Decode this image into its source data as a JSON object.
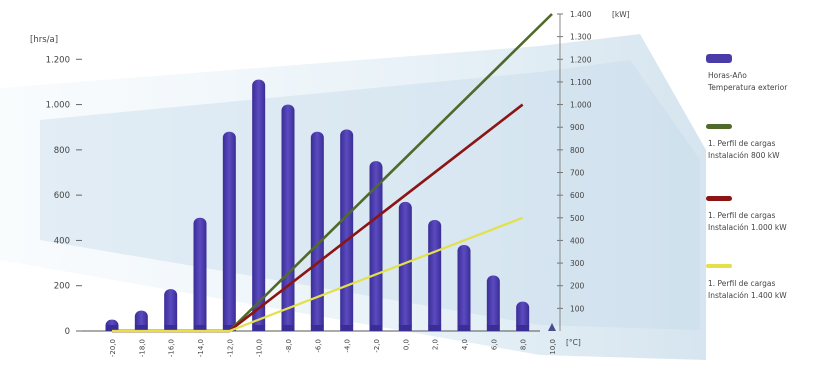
{
  "chart_data": {
    "type": "bar",
    "title": "",
    "ylabel_left": "[hrs/a]",
    "ylabel_right": "[kW]",
    "xlabel": "[°C]",
    "grid": false,
    "legend_position": "right",
    "categories": [
      "-20,0",
      "-18,0",
      "-16,0",
      "-14,0",
      "-12,0",
      "-10,0",
      "-8,0",
      "-6,0",
      "-4,0",
      "-2,0",
      "0,0",
      "2,0",
      "4,0",
      "6,0",
      "8,0",
      "10,0"
    ],
    "ylim_left": [
      0,
      1400
    ],
    "ylim_right": [
      0,
      1400
    ],
    "left_ticks": [
      {
        "value": 0,
        "label": "0"
      },
      {
        "value": 200,
        "label": "200"
      },
      {
        "value": 400,
        "label": "400"
      },
      {
        "value": 600,
        "label": "600"
      },
      {
        "value": 800,
        "label": "800"
      },
      {
        "value": 1000,
        "label": "1.000"
      },
      {
        "value": 1200,
        "label": "1.200"
      }
    ],
    "right_ticks": [
      {
        "value": 100,
        "label": "100"
      },
      {
        "value": 200,
        "label": "200"
      },
      {
        "value": 300,
        "label": "300"
      },
      {
        "value": 400,
        "label": "400"
      },
      {
        "value": 500,
        "label": "500"
      },
      {
        "value": 600,
        "label": "600"
      },
      {
        "value": 700,
        "label": "700"
      },
      {
        "value": 800,
        "label": "800"
      },
      {
        "value": 900,
        "label": "900"
      },
      {
        "value": 1000,
        "label": "1.000"
      },
      {
        "value": 1100,
        "label": "1.100"
      },
      {
        "value": 1200,
        "label": "1.200"
      },
      {
        "value": 1300,
        "label": "1.300"
      },
      {
        "value": 1400,
        "label": "1.400"
      }
    ],
    "bars": {
      "name": "Horas-Año Temperatura exterior",
      "color": "#4a3ca8",
      "values": [
        50,
        90,
        185,
        500,
        880,
        1110,
        1000,
        880,
        890,
        750,
        570,
        490,
        380,
        245,
        130,
        20
      ]
    },
    "lines": [
      {
        "name": "1. Perfil de cargas Instalación 800 kW",
        "color": "#4f6a2a",
        "points": [
          [
            -20,
            0
          ],
          [
            -12,
            0
          ],
          [
            10,
            1400
          ]
        ]
      },
      {
        "name": "1. Perfil de cargas Instalación 1.000 kW",
        "color": "#8b1414",
        "points": [
          [
            -20,
            0
          ],
          [
            -12,
            0
          ],
          [
            8,
            1000
          ]
        ]
      },
      {
        "name": "1. Perfil de cargas Instalación 1.400 kW",
        "color": "#e3e04a",
        "points": [
          [
            -20,
            0
          ],
          [
            -12,
            0
          ],
          [
            8,
            500
          ]
        ]
      }
    ]
  },
  "legend": [
    {
      "line1": "Horas-Año",
      "line2": "Temperatura exterior",
      "color": "#4a3ca8"
    },
    {
      "line1": "1. Perfil de cargas",
      "line2": "Instalación 800 kW",
      "color": "#4f6a2a"
    },
    {
      "line1": "1. Perfil de cargas",
      "line2": "Instalación 1.000 kW",
      "color": "#8b1414"
    },
    {
      "line1": "1. Perfil de cargas",
      "line2": "Instalación 1.400 kW",
      "color": "#e3e04a"
    }
  ]
}
